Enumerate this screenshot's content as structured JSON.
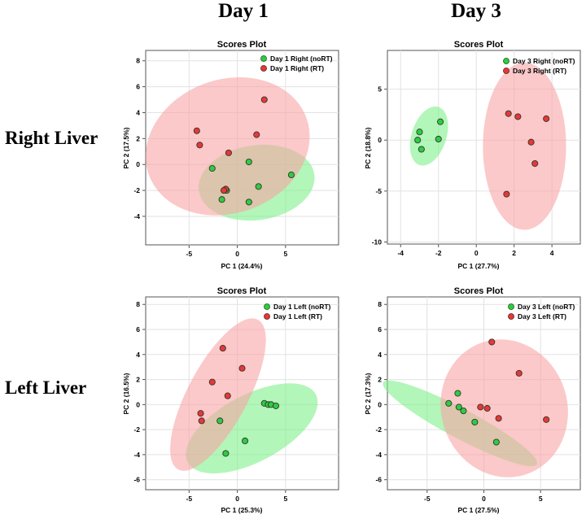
{
  "column_headers": [
    "Day 1",
    "Day 3"
  ],
  "row_headers": [
    "Right Liver",
    "Left Liver"
  ],
  "colors": {
    "noRT": "#2ecc40",
    "RT": "#e53935",
    "noRT_ellipse": "#7ef08a",
    "RT_ellipse": "#f8a5a5"
  },
  "chart_data": [
    {
      "type": "scatter",
      "title": "Scores Plot",
      "xlabel": "PC 1 (24.4%)",
      "ylabel": "PC 2 (17.5%)",
      "xlim": [
        -9.5,
        10.5
      ],
      "ylim": [
        -6.2,
        8.8
      ],
      "xticks": [
        -5,
        0,
        5
      ],
      "yticks": [
        -4,
        -2,
        0,
        2,
        4,
        6,
        8
      ],
      "grid": true,
      "legend": "top-right",
      "series": [
        {
          "name": "Day 1 Right (noRT)",
          "color": "#2ecc40",
          "ellipse_color": "#7ef08a",
          "x": [
            -2.6,
            1.2,
            5.6,
            2.2,
            -1.1,
            -1.6,
            1.2
          ],
          "y": [
            -0.3,
            0.2,
            -0.8,
            -1.7,
            -2.0,
            -2.7,
            -2.9
          ],
          "ellipse": {
            "cx": 2.0,
            "cy": -1.4,
            "rx": 6.0,
            "ry": 2.9,
            "angle": 8
          }
        },
        {
          "name": "Day 1 Right (RT)",
          "color": "#e53935",
          "ellipse_color": "#f8a5a5",
          "x": [
            2.8,
            -4.2,
            -3.9,
            2.0,
            -0.9,
            -1.2,
            -1.4
          ],
          "y": [
            5.0,
            2.6,
            1.5,
            2.3,
            0.9,
            -1.9,
            -2.0
          ],
          "ellipse": {
            "cx": -1.0,
            "cy": 1.4,
            "rx": 8.3,
            "ry": 5.3,
            "angle": 20
          }
        }
      ]
    },
    {
      "type": "scatter",
      "title": "Scores Plot",
      "xlabel": "PC 1 (27.7%)",
      "ylabel": "PC 2 (18.8%)",
      "xlim": [
        -4.7,
        5.5
      ],
      "ylim": [
        -10.2,
        8.8
      ],
      "xticks": [
        -4,
        -2,
        0,
        2,
        4
      ],
      "yticks": [
        -10,
        -5,
        0,
        5
      ],
      "grid": true,
      "legend": "top-right",
      "series": [
        {
          "name": "Day 3 Right (noRT)",
          "color": "#2ecc40",
          "ellipse_color": "#7ef08a",
          "x": [
            -1.9,
            -3.0,
            -3.1,
            -2.0,
            -2.9
          ],
          "y": [
            1.8,
            0.8,
            0.0,
            0.1,
            -0.9
          ],
          "ellipse": {
            "cx": -2.5,
            "cy": 0.4,
            "rx": 0.95,
            "ry": 2.7,
            "angle": -18
          }
        },
        {
          "name": "Day 3 Right (RT)",
          "color": "#e53935",
          "ellipse_color": "#f8a5a5",
          "x": [
            1.7,
            2.2,
            3.7,
            2.9,
            3.1,
            1.6
          ],
          "y": [
            2.6,
            2.3,
            2.1,
            -0.2,
            -2.3,
            -5.3
          ],
          "ellipse": {
            "cx": 2.55,
            "cy": -0.6,
            "rx": 2.2,
            "ry": 8.2,
            "angle": 0
          }
        }
      ]
    },
    {
      "type": "scatter",
      "title": "Scores Plot",
      "xlabel": "PC 1 (25.3%)",
      "ylabel": "PC 2 (16.5%)",
      "xlim": [
        -9.5,
        10.5
      ],
      "ylim": [
        -6.8,
        8.6
      ],
      "xticks": [
        -5,
        0,
        5
      ],
      "yticks": [
        -6,
        -4,
        -2,
        0,
        2,
        4,
        6,
        8
      ],
      "grid": true,
      "legend": "top-right",
      "series": [
        {
          "name": "Day 1 Left (noRT)",
          "color": "#2ecc40",
          "ellipse_color": "#7ef08a",
          "x": [
            2.8,
            3.2,
            3.5,
            4.0,
            -1.8,
            0.8,
            -1.2
          ],
          "y": [
            0.1,
            0.0,
            0.0,
            -0.1,
            -1.3,
            -2.9,
            -3.9
          ],
          "ellipse": {
            "cx": 1.5,
            "cy": -1.9,
            "rx": 7.0,
            "ry": 2.8,
            "angle": 28
          }
        },
        {
          "name": "Day 1 Left (RT)",
          "color": "#e53935",
          "ellipse_color": "#f8a5a5",
          "x": [
            -1.5,
            0.5,
            -2.6,
            -1.0,
            -3.8,
            -3.7
          ],
          "y": [
            4.5,
            2.9,
            1.8,
            0.7,
            -0.7,
            -1.3
          ],
          "ellipse": {
            "cx": -2.0,
            "cy": 0.8,
            "rx": 7.1,
            "ry": 2.9,
            "angle": 62
          }
        }
      ]
    },
    {
      "type": "scatter",
      "title": "Scores Plot",
      "xlabel": "PC 1 (27.5%)",
      "ylabel": "PC 2 (17.3%)",
      "xlim": [
        -8.5,
        8.5
      ],
      "ylim": [
        -6.8,
        8.6
      ],
      "xticks": [
        -5,
        0,
        5
      ],
      "yticks": [
        -6,
        -4,
        -2,
        0,
        2,
        4,
        6,
        8
      ],
      "grid": true,
      "legend": "top-right",
      "series": [
        {
          "name": "Day 3 Left (noRT)",
          "color": "#2ecc40",
          "ellipse_color": "#7ef08a",
          "x": [
            -2.3,
            -3.1,
            -2.2,
            -1.8,
            -0.8,
            1.1
          ],
          "y": [
            0.9,
            0.1,
            -0.2,
            -0.5,
            -1.4,
            -3.0
          ],
          "ellipse": {
            "cx": -2.1,
            "cy": -1.5,
            "rx": 7.5,
            "ry": 1.2,
            "angle": -28
          }
        },
        {
          "name": "Day 3 Left (RT)",
          "color": "#e53935",
          "ellipse_color": "#f8a5a5",
          "x": [
            0.7,
            3.1,
            0.3,
            -0.3,
            1.3,
            5.5
          ],
          "y": [
            5.0,
            2.5,
            -0.3,
            -0.2,
            -1.1,
            -1.2
          ],
          "ellipse": {
            "cx": 1.8,
            "cy": -0.3,
            "rx": 5.5,
            "ry": 5.6,
            "angle": 18
          }
        }
      ]
    }
  ]
}
